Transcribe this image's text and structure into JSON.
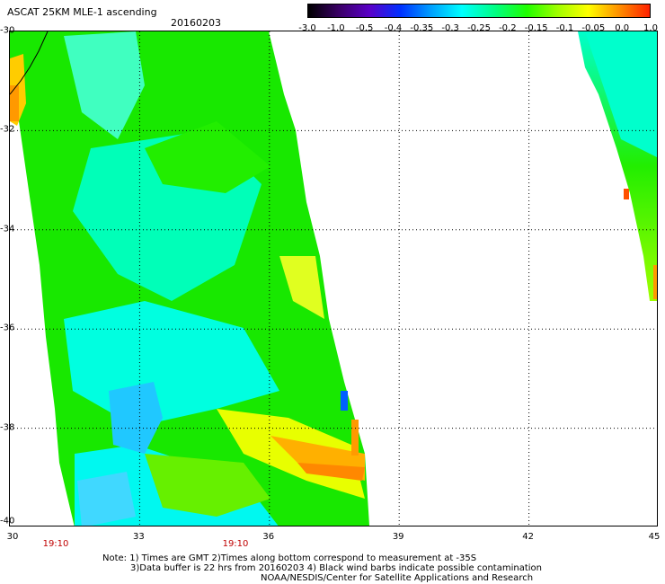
{
  "header": {
    "title": "ASCAT 25KM MLE-1 ascending",
    "date": "20160203"
  },
  "colorbar": {
    "labels": [
      "-3.0",
      "-1.0",
      "-0.5",
      "-0.4",
      "-0.35",
      "-0.3",
      "-0.25",
      "-0.2",
      "-0.15",
      "-0.1",
      "-0.05",
      "0.0",
      "1.0"
    ]
  },
  "axes": {
    "y_labels": [
      "-30",
      "-32",
      "-34",
      "-36",
      "-38",
      "-40"
    ],
    "x_labels": [
      "30",
      "33",
      "36",
      "39",
      "42",
      "45"
    ],
    "time_labels": [
      "19:10",
      "19:10"
    ]
  },
  "notes": {
    "line1": "Note: 1) Times are GMT 2)Times along bottom correspond to measurement at -35S",
    "line2": "3)Data buffer is 22 hrs from 20160203 4) Black wind barbs indicate possible contamination",
    "line3": "NOAA/NESDIS/Center for Satellite Applications and Research"
  },
  "map": {
    "lon_range": [
      30,
      45
    ],
    "lat_range": [
      -40,
      -30
    ],
    "colors": {
      "cyan": "#00ffff",
      "green": "#22ee00",
      "lightgreen": "#80ff00",
      "blue": "#0090ff",
      "yellow": "#ffff00",
      "orange": "#ff9000",
      "red": "#ff3000"
    }
  }
}
